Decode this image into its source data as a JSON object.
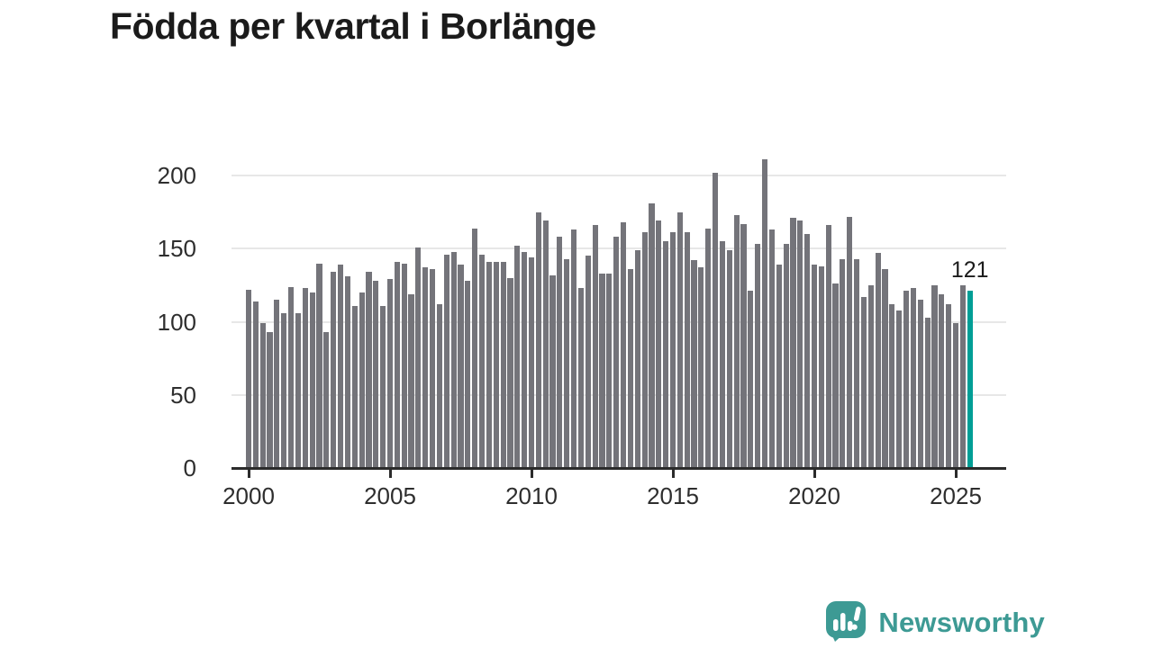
{
  "title": "Födda per kvartal i Borlänge",
  "branding": {
    "logo_text": "Newsworthy",
    "logo_color": "#3d9a94",
    "logo_icon": "speech-bubble-bar-chart-icon"
  },
  "colors": {
    "bar": "#74747a",
    "highlight": "#009e96",
    "gridline": "#e7e7e7",
    "axis": "#2b2b2b",
    "text": "#1b1b1b"
  },
  "annotation": {
    "last_value_label": "121"
  },
  "chart_data": {
    "type": "bar",
    "title": "Födda per kvartal i Borlänge",
    "frequency": "quarterly",
    "categories_start": "2000-Q1",
    "categories_end": "2025-Q3",
    "xlabel": "",
    "ylabel": "",
    "ylim": [
      0,
      215
    ],
    "grid": "horizontal",
    "y_ticks": [
      0,
      50,
      100,
      150,
      200
    ],
    "x_ticks": [
      2000,
      2005,
      2010,
      2015,
      2020,
      2025
    ],
    "highlight_last": true,
    "highlight_value": 121,
    "values": [
      122,
      114,
      99,
      93,
      115,
      106,
      124,
      106,
      123,
      120,
      140,
      93,
      134,
      139,
      131,
      111,
      120,
      134,
      128,
      111,
      129,
      141,
      140,
      119,
      151,
      137,
      136,
      112,
      146,
      148,
      139,
      128,
      164,
      146,
      141,
      141,
      141,
      130,
      152,
      148,
      144,
      175,
      169,
      132,
      158,
      143,
      163,
      123,
      145,
      166,
      133,
      133,
      158,
      168,
      136,
      149,
      161,
      181,
      169,
      155,
      161,
      175,
      161,
      142,
      137,
      164,
      202,
      155,
      149,
      173,
      167,
      121,
      153,
      211,
      163,
      139,
      153,
      171,
      169,
      160,
      139,
      138,
      166,
      126,
      143,
      172,
      143,
      117,
      125,
      147,
      136,
      112,
      108,
      121,
      123,
      115,
      103,
      125,
      119,
      112,
      99,
      125,
      121
    ]
  }
}
